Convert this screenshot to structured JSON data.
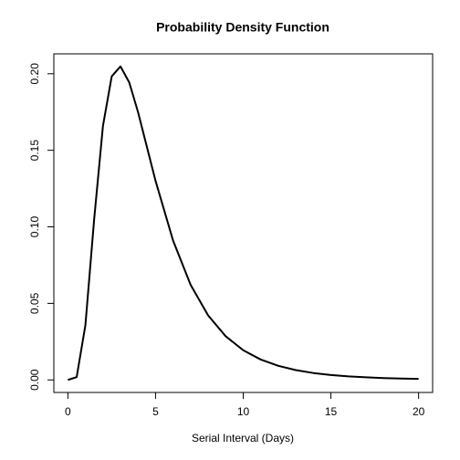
{
  "chart_data": {
    "type": "line",
    "title": "Probability Density Function",
    "x_label": "Serial Interval (Days)",
    "x": [
      0,
      0.5,
      1,
      1.5,
      2,
      2.5,
      3,
      3.5,
      4,
      4.5,
      5,
      6,
      7,
      8,
      9,
      10,
      11,
      12,
      13,
      14,
      15,
      16,
      17,
      18,
      19,
      20
    ],
    "values": [
      0,
      0.0018,
      0.0358,
      0.1051,
      0.1659,
      0.1983,
      0.2048,
      0.1943,
      0.175,
      0.1525,
      0.13,
      0.091,
      0.0621,
      0.0421,
      0.0285,
      0.0194,
      0.0133,
      0.0092,
      0.0064,
      0.0045,
      0.0032,
      0.0023,
      0.0017,
      0.0012,
      0.0009,
      0.0007
    ],
    "color": "#000000",
    "xlim": [
      -0.8,
      20.8
    ],
    "ylim": [
      -0.0082,
      0.213
    ],
    "xticks": [
      0,
      5,
      10,
      15,
      20
    ],
    "yticks": [
      {
        "value": 0,
        "label": "0.00"
      },
      0.05,
      {
        "value": 0.1,
        "label": "0.10"
      },
      0.15,
      {
        "value": 0.2,
        "label": "0.20"
      }
    ]
  }
}
